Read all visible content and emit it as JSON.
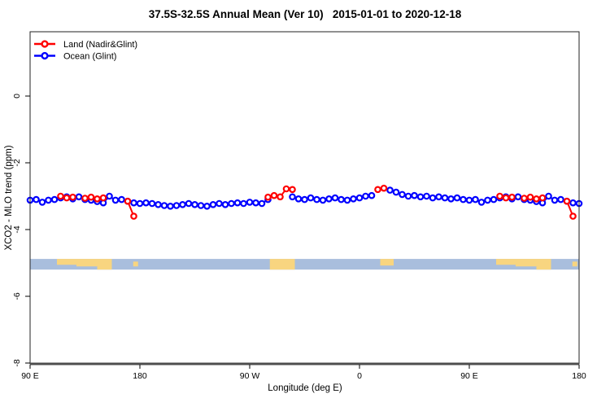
{
  "title": "37.5S-32.5S Annual Mean (Ver 10)   2015-01-01 to 2020-12-18",
  "legend": {
    "items": [
      {
        "name": "land",
        "label": "Land (Nadir&Glint)",
        "color": "#ff0000"
      },
      {
        "name": "ocean",
        "label": "Ocean (Glint)",
        "color": "#0000ff"
      }
    ]
  },
  "axes": {
    "x_label": "Longitude (deg E)",
    "y_label": "XCO2 - MLO trend (ppm)",
    "x_ticks": [
      {
        "lon": 90,
        "label": "90 E"
      },
      {
        "lon": 180,
        "label": "180"
      },
      {
        "lon": 270,
        "label": "90 W"
      },
      {
        "lon": 360,
        "label": "0"
      },
      {
        "lon": 450,
        "label": "90 E"
      },
      {
        "lon": 540,
        "label": "180"
      }
    ],
    "y_ticks": [
      {
        "v": 0,
        "label": "0"
      },
      {
        "v": -2,
        "label": "-2"
      },
      {
        "v": -4,
        "label": "-4"
      },
      {
        "v": -6,
        "label": "-6"
      },
      {
        "v": -8,
        "label": "-8"
      }
    ]
  },
  "chart_data": {
    "type": "line",
    "title": "37.5S-32.5S Annual Mean (Ver 10)   2015-01-01 to 2020-12-18",
    "xlabel": "Longitude (deg E)",
    "ylabel": "XCO2 - MLO trend (ppm)",
    "x_axis_note": "longitude unwrapped eastward from 90E to 180 (second pass); 5-degree bins",
    "xlim_unwrapped_deg": [
      90,
      540
    ],
    "ylim_ppm": [
      -8,
      1.9
    ],
    "grid": false,
    "legend_position": "top-left",
    "marker": "open-circle",
    "series": [
      {
        "name": "Ocean (Glint)",
        "color": "#0000ff",
        "segments": [
          [
            [
              90,
              -3.12
            ],
            [
              95,
              -3.1
            ],
            [
              100,
              -3.18
            ],
            [
              105,
              -3.12
            ],
            [
              110,
              -3.1
            ],
            [
              115,
              -3.05
            ],
            [
              120,
              -3.02
            ],
            [
              125,
              -3.08
            ],
            [
              130,
              -3.02
            ],
            [
              135,
              -3.1
            ],
            [
              140,
              -3.12
            ],
            [
              145,
              -3.16
            ],
            [
              150,
              -3.2
            ],
            [
              155,
              -3.0
            ],
            [
              160,
              -3.12
            ],
            [
              165,
              -3.1
            ],
            [
              170,
              -3.15
            ],
            [
              175,
              -3.2
            ],
            [
              180,
              -3.22
            ],
            [
              185,
              -3.2
            ],
            [
              190,
              -3.22
            ],
            [
              195,
              -3.25
            ],
            [
              200,
              -3.28
            ],
            [
              205,
              -3.3
            ],
            [
              210,
              -3.28
            ],
            [
              215,
              -3.25
            ],
            [
              220,
              -3.22
            ],
            [
              225,
              -3.25
            ],
            [
              230,
              -3.28
            ],
            [
              235,
              -3.3
            ],
            [
              240,
              -3.25
            ],
            [
              245,
              -3.22
            ],
            [
              250,
              -3.25
            ],
            [
              255,
              -3.22
            ],
            [
              260,
              -3.2
            ],
            [
              265,
              -3.22
            ],
            [
              270,
              -3.18
            ],
            [
              275,
              -3.2
            ],
            [
              280,
              -3.22
            ],
            [
              285,
              -3.1
            ]
          ],
          [
            [
              305,
              -3.02
            ],
            [
              310,
              -3.08
            ],
            [
              315,
              -3.1
            ],
            [
              320,
              -3.05
            ],
            [
              325,
              -3.1
            ],
            [
              330,
              -3.12
            ],
            [
              335,
              -3.08
            ],
            [
              340,
              -3.05
            ],
            [
              345,
              -3.1
            ],
            [
              350,
              -3.12
            ],
            [
              355,
              -3.08
            ],
            [
              360,
              -3.05
            ],
            [
              365,
              -3.0
            ],
            [
              370,
              -2.98
            ]
          ],
          [
            [
              385,
              -2.82
            ],
            [
              390,
              -2.88
            ],
            [
              395,
              -2.95
            ],
            [
              400,
              -3.0
            ],
            [
              405,
              -2.98
            ],
            [
              410,
              -3.02
            ],
            [
              415,
              -3.0
            ],
            [
              420,
              -3.05
            ],
            [
              425,
              -3.02
            ],
            [
              430,
              -3.05
            ],
            [
              435,
              -3.08
            ],
            [
              440,
              -3.05
            ],
            [
              445,
              -3.1
            ],
            [
              450,
              -3.12
            ],
            [
              455,
              -3.1
            ],
            [
              460,
              -3.18
            ],
            [
              465,
              -3.12
            ],
            [
              470,
              -3.1
            ],
            [
              475,
              -3.05
            ],
            [
              480,
              -3.02
            ],
            [
              485,
              -3.08
            ],
            [
              490,
              -3.02
            ],
            [
              495,
              -3.1
            ],
            [
              500,
              -3.12
            ],
            [
              505,
              -3.16
            ],
            [
              510,
              -3.2
            ],
            [
              515,
              -3.0
            ],
            [
              520,
              -3.12
            ],
            [
              525,
              -3.1
            ],
            [
              530,
              -3.15
            ],
            [
              535,
              -3.2
            ],
            [
              540,
              -3.22
            ]
          ]
        ]
      },
      {
        "name": "Land (Nadir&Glint)",
        "color": "#ff0000",
        "segments": [
          [
            [
              115,
              -3.0
            ],
            [
              120,
              -3.05
            ],
            [
              125,
              -3.03
            ]
          ],
          [
            [
              135,
              -3.06
            ],
            [
              140,
              -3.03
            ],
            [
              145,
              -3.08
            ],
            [
              150,
              -3.05
            ]
          ],
          [
            [
              170,
              -3.15
            ],
            [
              175,
              -3.6
            ]
          ],
          [
            [
              285,
              -3.03
            ],
            [
              290,
              -2.98
            ],
            [
              295,
              -3.02
            ],
            [
              300,
              -2.78
            ],
            [
              305,
              -2.8
            ]
          ],
          [
            [
              375,
              -2.8
            ],
            [
              380,
              -2.76
            ]
          ],
          [
            [
              475,
              -3.0
            ],
            [
              480,
              -3.05
            ],
            [
              485,
              -3.03
            ]
          ],
          [
            [
              495,
              -3.06
            ],
            [
              500,
              -3.03
            ],
            [
              505,
              -3.08
            ],
            [
              510,
              -3.05
            ]
          ],
          [
            [
              530,
              -3.15
            ],
            [
              535,
              -3.6
            ]
          ]
        ]
      }
    ],
    "map_band": {
      "description": "world-map strip at this latitude band: ocean blue, land yellow",
      "ocean_color": "#a9bedd",
      "land_color": "#f8d580",
      "y_range_ppm": [
        -4.88,
        -5.2
      ],
      "land_patches_lon_frac": [
        [
          112,
          128,
          0,
          0.55
        ],
        [
          128,
          145,
          0,
          0.7
        ],
        [
          145,
          157,
          0,
          1
        ],
        [
          174.5,
          178.5,
          0.25,
          0.7
        ],
        [
          286.5,
          307,
          0,
          1
        ],
        [
          377,
          388,
          0,
          0.62
        ],
        [
          472,
          488,
          0,
          0.55
        ],
        [
          488,
          505,
          0,
          0.7
        ],
        [
          505,
          517,
          0,
          1
        ],
        [
          534.5,
          538.5,
          0.25,
          0.7
        ]
      ]
    },
    "frame_color": "#222222",
    "baseline_color": "#4d4d4d"
  }
}
